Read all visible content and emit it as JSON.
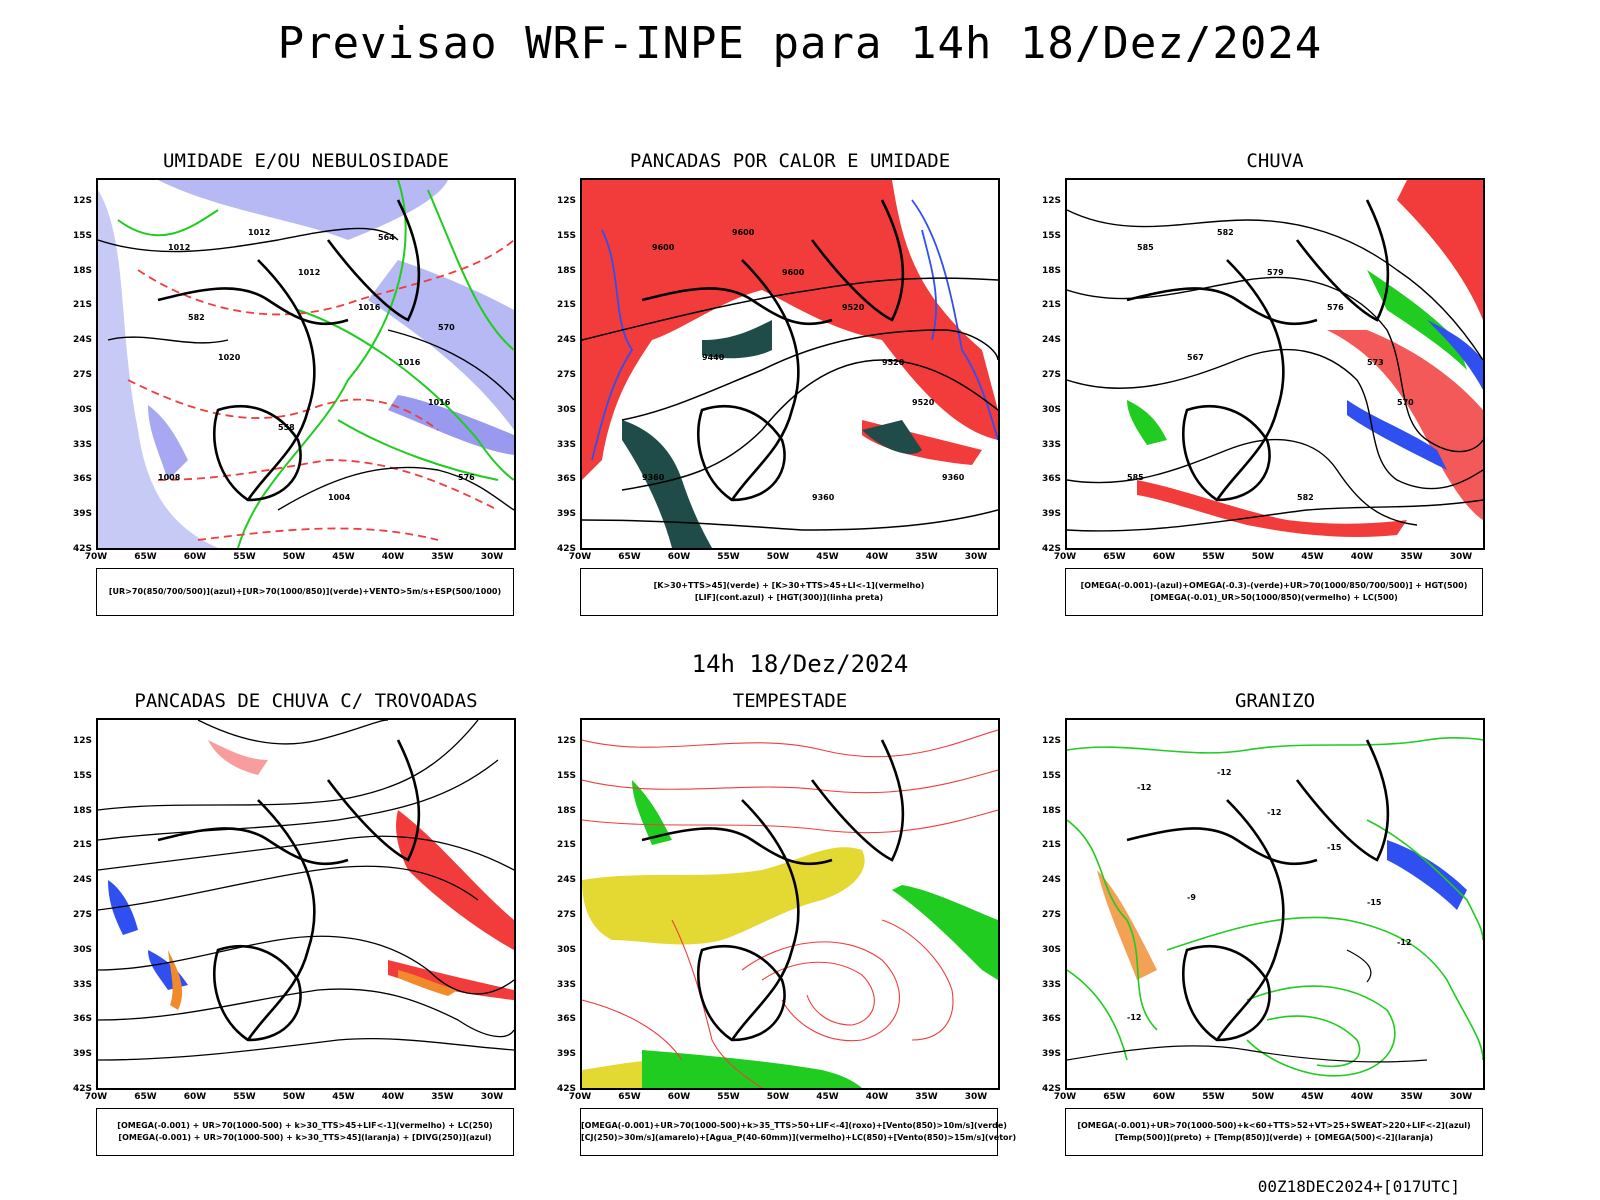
{
  "title": "Previsao WRF-INPE  para 14h 18/Dez/2024",
  "mid_title": "14h 18/Dez/2024",
  "footer": "00Z18DEC2024+[017UTC]",
  "lat_labels": [
    "12S",
    "15S",
    "18S",
    "21S",
    "24S",
    "27S",
    "30S",
    "33S",
    "36S",
    "39S",
    "42S"
  ],
  "lon_labels": [
    "70W",
    "65W",
    "60W",
    "55W",
    "50W",
    "45W",
    "40W",
    "35W",
    "30W"
  ],
  "colors": {
    "blue_shade": "#a4a7f0",
    "green": "#1fcc1f",
    "red": "#f23c3c",
    "dark_teal": "#1f4c48",
    "blue_line": "#2f4ff0",
    "yellow": "#e4d832",
    "orange": "#f08a2a"
  },
  "panels": [
    {
      "title": "UMIDADE E/OU NEBULOSIDADE",
      "legend": [
        "[UR>70(850/700/500)](azul)+[UR>70(1000/850)](verde)+VENTO>5m/s+ESP(500/1000)"
      ],
      "labels": [
        "1012",
        "1012",
        "1012",
        "1016",
        "1016",
        "1016",
        "1020",
        "1008",
        "1004",
        "576",
        "582",
        "564",
        "570",
        "558"
      ]
    },
    {
      "title": "PANCADAS POR CALOR E UMIDADE",
      "legend": [
        "[K>30+TTS>45](verde) + [K>30+TTS>45+LI<-1](vermelho)",
        "[LIF](cont.azul) + [HGT(300)](linha preta)"
      ],
      "labels": [
        "9600",
        "9600",
        "9600",
        "9520",
        "9520",
        "9520",
        "9440",
        "9360",
        "9360",
        "9360"
      ]
    },
    {
      "title": "CHUVA",
      "legend": [
        "[OMEGA(-0.001)-(azul)+OMEGA(-0.3)-(verde)+UR>70(1000/850/700/500)] + HGT(500)",
        "[OMEGA(-0.01)_UR>50(1000/850)(vermelho) + LC(500)"
      ],
      "labels": [
        "585",
        "582",
        "579",
        "576",
        "573",
        "570",
        "567",
        "585",
        "582"
      ]
    },
    {
      "title": "PANCADAS DE CHUVA C/ TROVOADAS",
      "legend": [
        "[OMEGA(-0.001) + UR>70(1000-500) + k>30_TTS>45+LIF<-1](vermelho) + LC(250)",
        "[OMEGA(-0.001) + UR>70(1000-500) + k>30_TTS>45](laranja) + [DIVG(250)](azul)"
      ],
      "labels": []
    },
    {
      "title": "TEMPESTADE",
      "legend": [
        "[OMEGA(-0.001)+UR>70(1000-500)+k>35_TTS>50+LIF<-4](roxo)+[Vento(850)>10m/s](verde)",
        "[CJ(250)>30m/s](amarelo)+[Agua_P(40-60mm)](vermelho)+LC(850)+[Vento(850)>15m/s](vetor)"
      ],
      "labels": []
    },
    {
      "title": "GRANIZO",
      "legend": [
        "[OMEGA(-0.001)+UR>70(1000-500)+k<60+TTS>52+VT>25+SWEAT>220+LIF<-2](azul)",
        "[Temp(500)](preto) + [Temp(850)](verde) + [OMEGA(500)<-2](laranja)"
      ],
      "labels": [
        "-12",
        "-12",
        "-12",
        "-15",
        "-15",
        "-12",
        "-9",
        "-12"
      ]
    }
  ]
}
